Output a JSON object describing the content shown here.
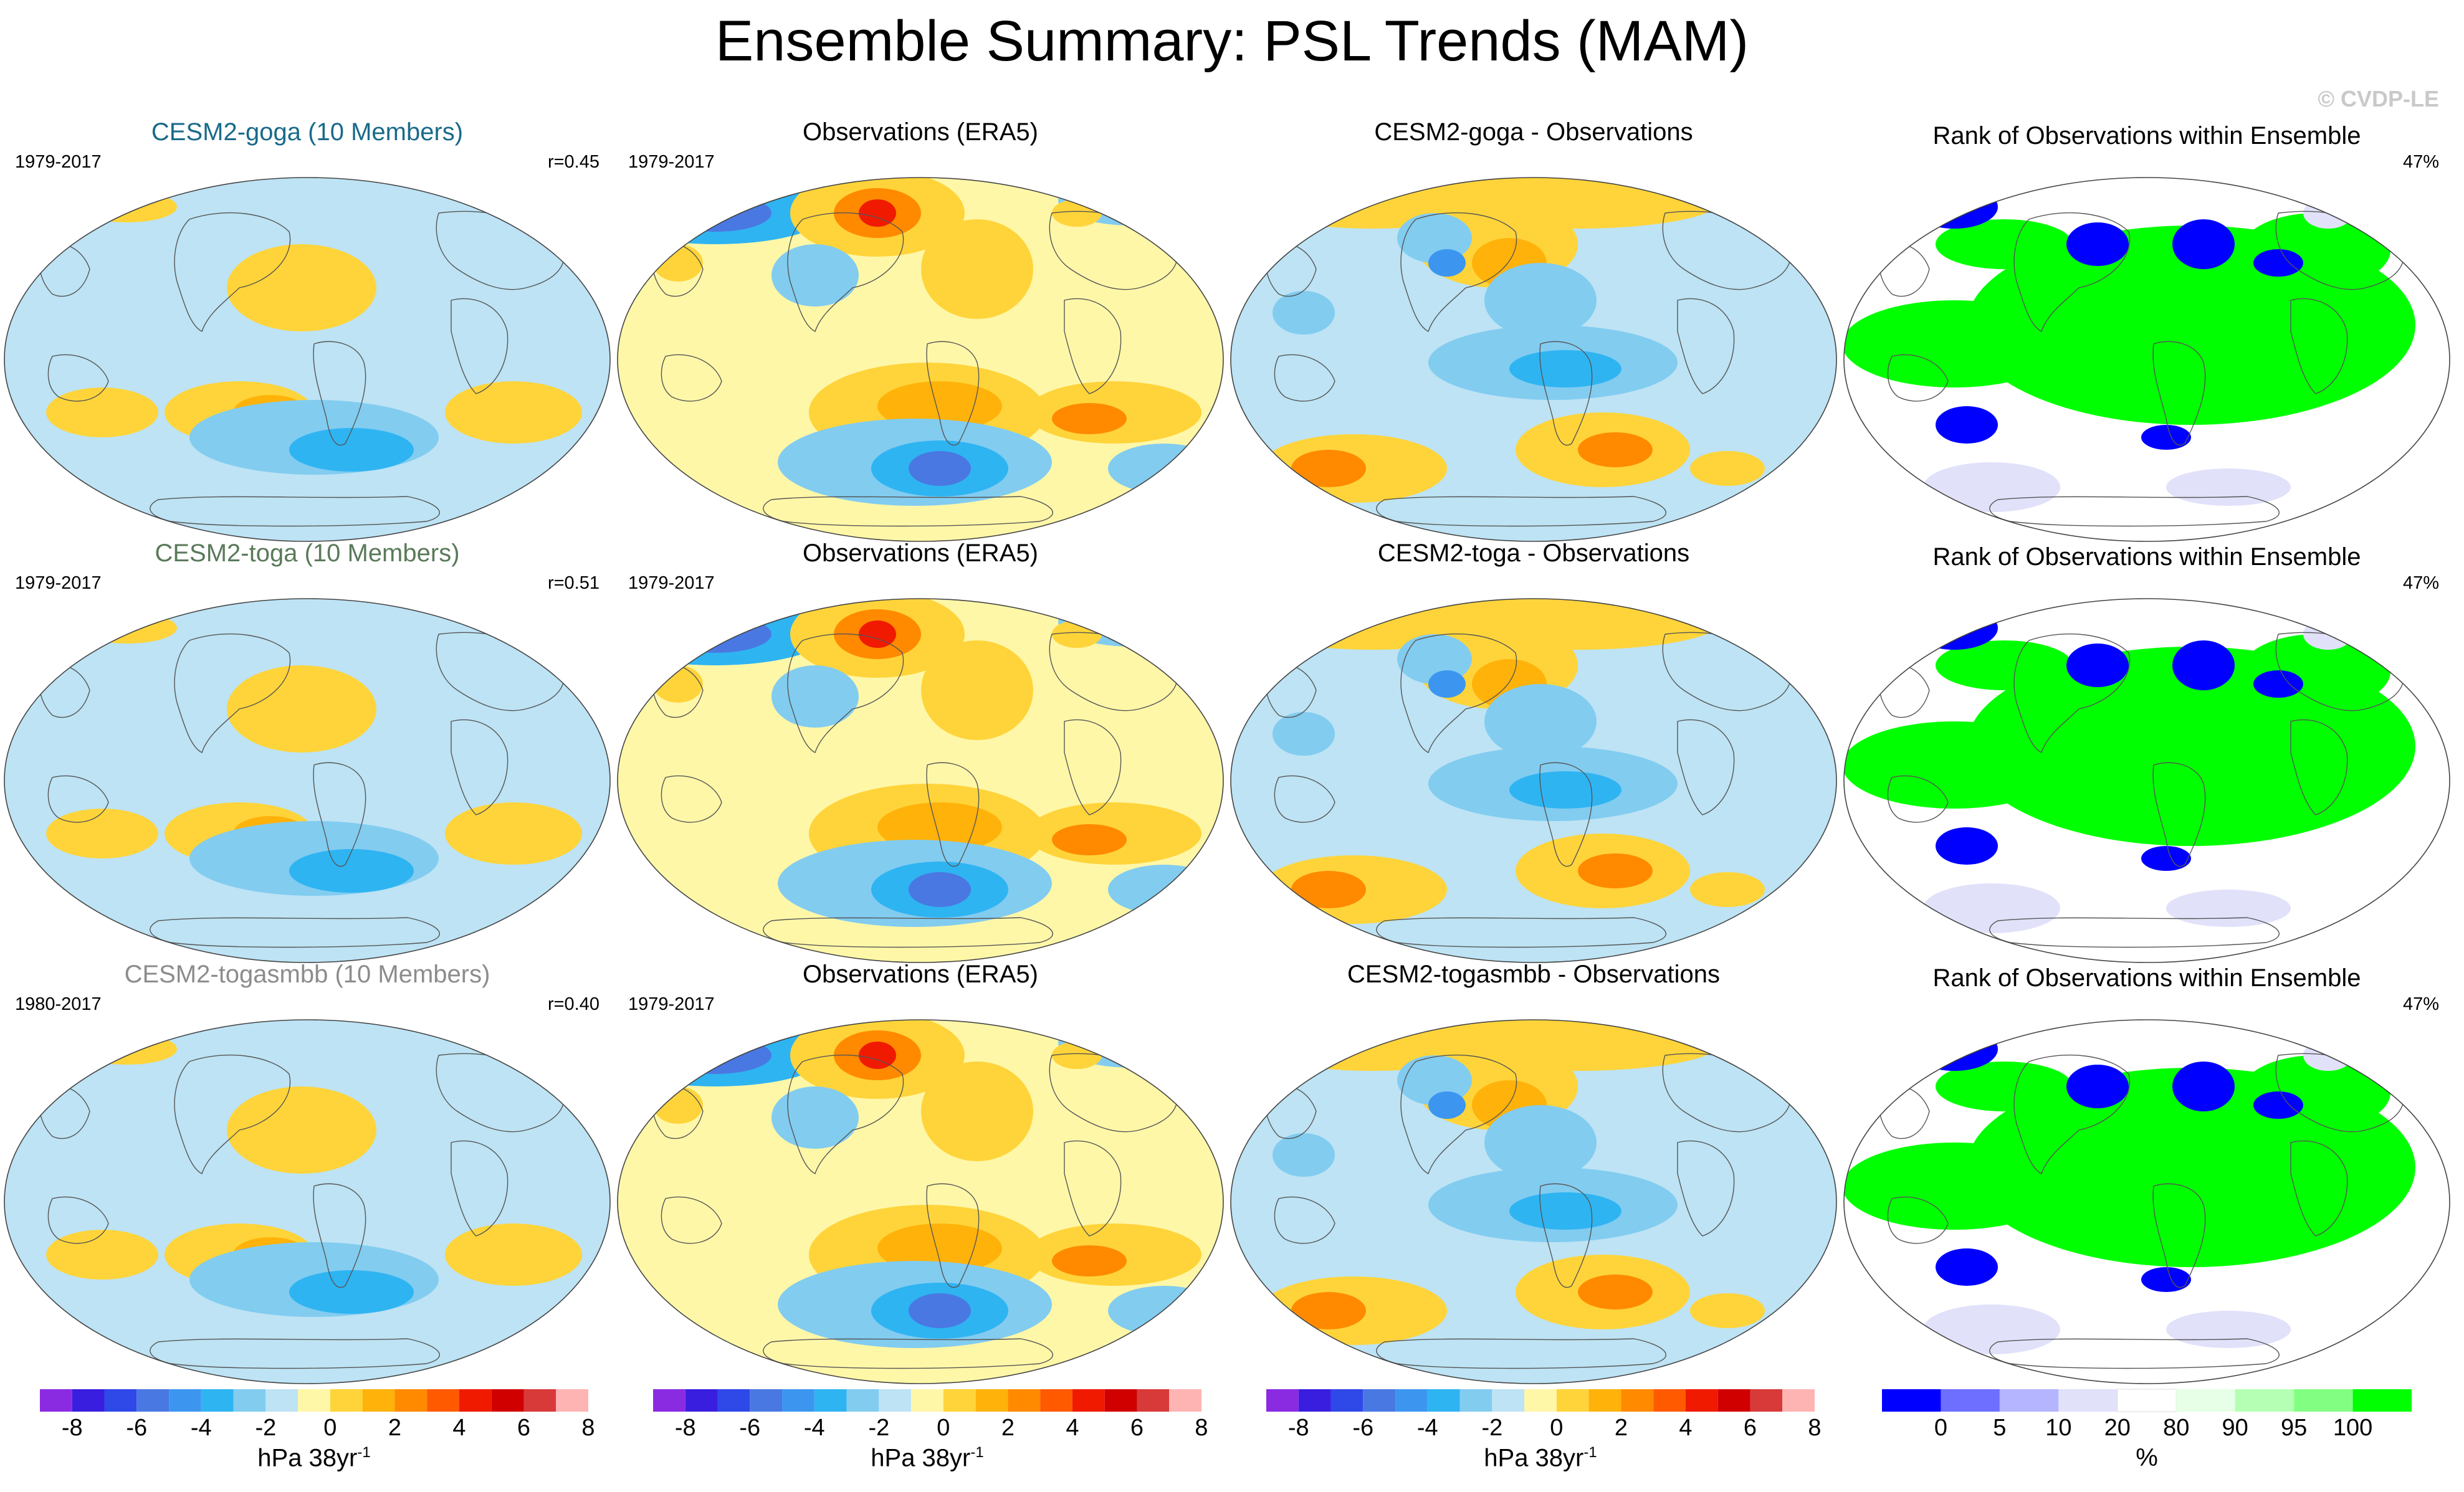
{
  "figure_title": "Ensemble Summary: PSL Trends (MAM)",
  "watermark": "© CVDP-LE",
  "colors": {
    "coast": "#555555",
    "diverging": [
      "#8a2be2",
      "#3a1ee0",
      "#2f48e8",
      "#4a78e2",
      "#3c96f0",
      "#2fb4f2",
      "#82ccf0",
      "#bde3f4",
      "#fff7a8",
      "#ffd43a",
      "#ffb20a",
      "#ff8a00",
      "#ff5a00",
      "#f01a00",
      "#d00000",
      "#d83a3a",
      "#ffb4b4"
    ],
    "rank": [
      "#0000ff",
      "#6e6eff",
      "#b4b4ff",
      "#e1e1fa",
      "#ffffff",
      "#e6ffe6",
      "#b4ffb4",
      "#82ff82",
      "#00ff00"
    ]
  },
  "rows": [
    {
      "model": {
        "title": "CESM2-goga (10 Members)",
        "title_color": "#1a6a8a",
        "period": "1979-2017",
        "r": "r=0.45"
      },
      "obs": {
        "title": "Observations (ERA5)",
        "period": "1979-2017"
      },
      "diff": {
        "title": "CESM2-goga - Observations"
      },
      "rank": {
        "title": "Rank of Observations within Ensemble",
        "pct": "47%"
      }
    },
    {
      "model": {
        "title": "CESM2-toga (10 Members)",
        "title_color": "#5a7a5a",
        "period": "1979-2017",
        "r": "r=0.51"
      },
      "obs": {
        "title": "Observations (ERA5)",
        "period": "1979-2017"
      },
      "diff": {
        "title": "CESM2-toga - Observations"
      },
      "rank": {
        "title": "Rank of Observations within Ensemble",
        "pct": "47%"
      }
    },
    {
      "model": {
        "title": "CESM2-togasmbb (10 Members)",
        "title_color": "#8c8c8c",
        "period": "1980-2017",
        "r": "r=0.40"
      },
      "obs": {
        "title": "Observations (ERA5)",
        "period": "1979-2017"
      },
      "diff": {
        "title": "CESM2-togasmbb - Observations"
      },
      "rank": {
        "title": "Rank of Observations within Ensemble",
        "pct": "47%"
      }
    }
  ],
  "colorbars": {
    "trend": {
      "labels": [
        "-8",
        "-6",
        "-4",
        "-2",
        "0",
        "2",
        "4",
        "6",
        "8"
      ],
      "unit": "hPa 38yr",
      "unit_sup": "-1"
    },
    "rank": {
      "labels": [
        "0",
        "5",
        "10",
        "20",
        "80",
        "90",
        "95",
        "100"
      ],
      "unit": "%"
    }
  }
}
